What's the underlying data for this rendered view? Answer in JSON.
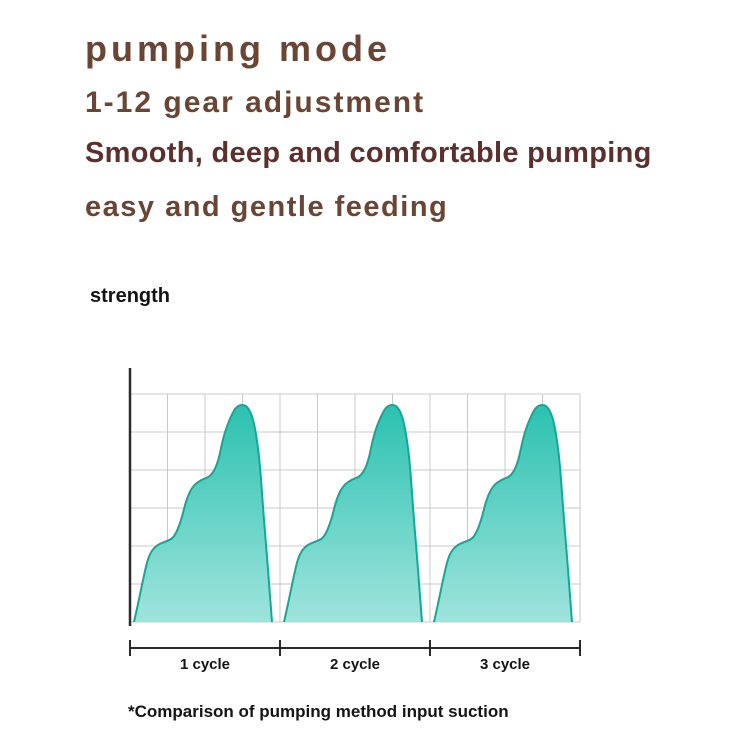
{
  "header": {
    "title": "pumping mode",
    "subtitle": "1-12 gear adjustment",
    "tagline1": "Smooth, deep and comfortable pumping",
    "tagline2": "easy and gentle feeding"
  },
  "colors": {
    "headline_brown": "#6b4533",
    "tagline_maroon": "#5d302d",
    "text_dark": "#141414",
    "grid_gray": "#c9c9c9"
  },
  "chart_data": {
    "type": "area",
    "title": "",
    "xlabel": "",
    "ylabel": "strength",
    "categories": [
      "1 cycle",
      "2 cycle",
      "3 cycle"
    ],
    "annotation": "*Comparison of pumping method input suction",
    "grid": true,
    "ylim": [
      0,
      1
    ],
    "colors": {
      "wave_top": "#2cc1b0",
      "wave_bottom": "#9fe4dc",
      "wave_stroke": "#14a796"
    },
    "series": [
      {
        "name": "suction strength waveform (repeated each cycle)",
        "waveform": [
          [
            0.0,
            0.0
          ],
          [
            0.03,
            0.08
          ],
          [
            0.07,
            0.2
          ],
          [
            0.11,
            0.3
          ],
          [
            0.17,
            0.34
          ],
          [
            0.24,
            0.355
          ],
          [
            0.29,
            0.37
          ],
          [
            0.34,
            0.44
          ],
          [
            0.38,
            0.54
          ],
          [
            0.43,
            0.6
          ],
          [
            0.49,
            0.625
          ],
          [
            0.56,
            0.64
          ],
          [
            0.61,
            0.7
          ],
          [
            0.65,
            0.82
          ],
          [
            0.7,
            0.9
          ],
          [
            0.74,
            0.945
          ],
          [
            0.79,
            0.955
          ],
          [
            0.83,
            0.94
          ],
          [
            0.87,
            0.88
          ],
          [
            0.91,
            0.72
          ],
          [
            0.94,
            0.46
          ],
          [
            0.97,
            0.24
          ],
          [
            0.99,
            0.08
          ],
          [
            1.0,
            0.0
          ]
        ]
      }
    ]
  }
}
